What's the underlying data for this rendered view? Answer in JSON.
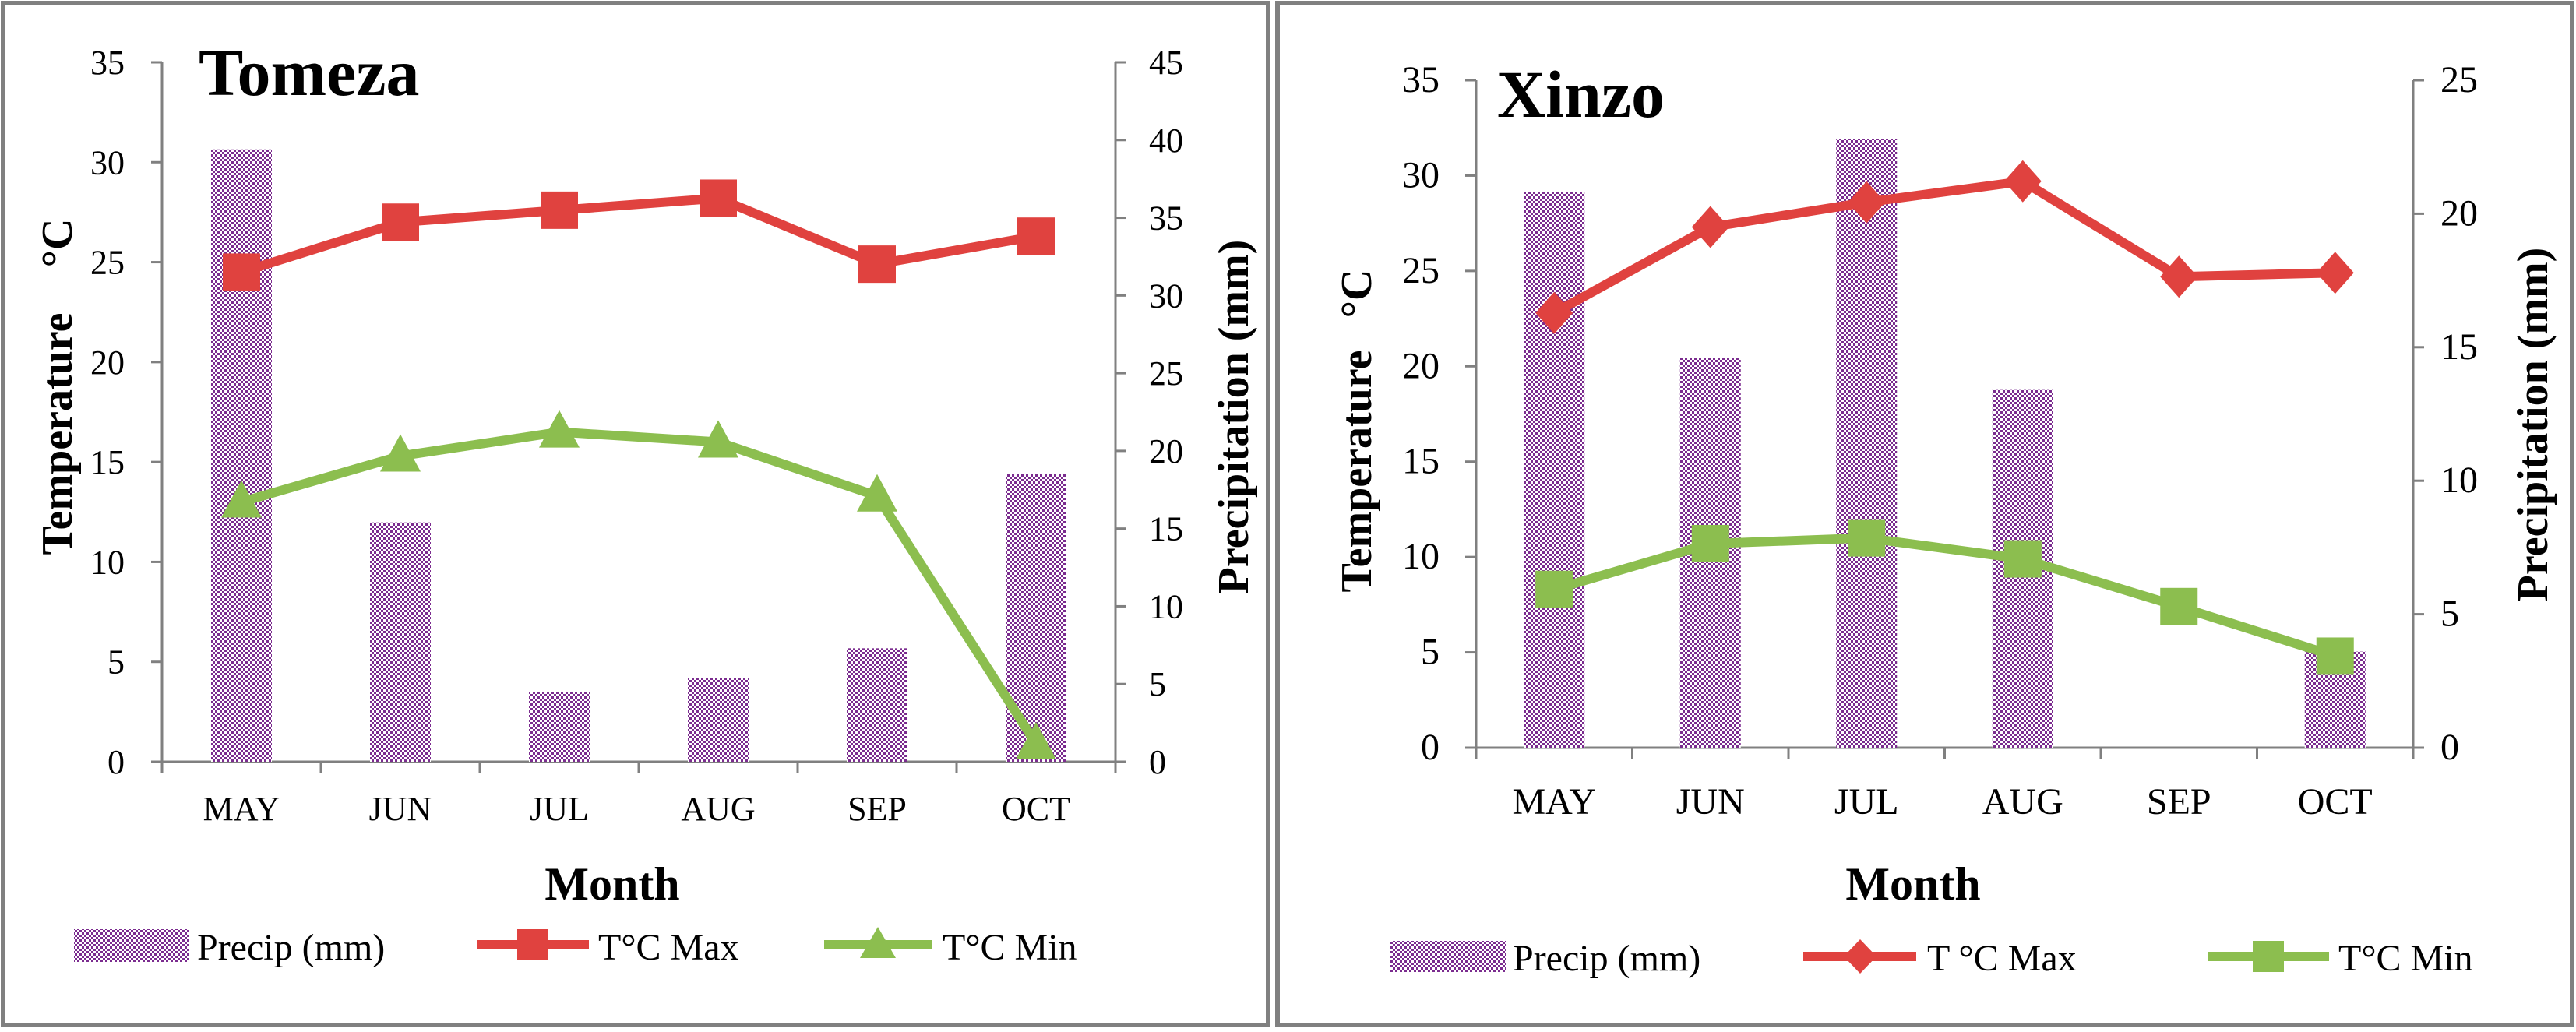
{
  "colors": {
    "precip": "#7B2C8F",
    "tmax": "#E0423F",
    "tmin": "#8CBE4F",
    "axis": "#808080",
    "border": "#808080"
  },
  "chart_data": [
    {
      "type": "bar",
      "title": "Tomeza",
      "categories": [
        "MAY",
        "JUN",
        "JUL",
        "AUG",
        "SEP",
        "OCT"
      ],
      "xlabel": "Month",
      "ylabel": "Temperature",
      "ylabel_unit": "°C",
      "y2label": "Precipitation (mm)",
      "ylim": [
        0,
        35
      ],
      "y2lim": [
        0,
        45
      ],
      "yticks": [
        "0",
        "5",
        "10",
        "15",
        "20",
        "25",
        "30",
        "35"
      ],
      "y2ticks": [
        "0",
        "5",
        "10",
        "15",
        "20",
        "25",
        "30",
        "35",
        "40",
        "45"
      ],
      "series": [
        {
          "name": "Precip (mm)",
          "kind": "bar",
          "axis": "right",
          "values": [
            39.4,
            15.4,
            4.5,
            5.4,
            7.3,
            18.5
          ]
        },
        {
          "name": "T°C Max",
          "kind": "line",
          "axis": "left",
          "marker": "square",
          "values": [
            24.5,
            27.0,
            27.6,
            28.2,
            24.9,
            26.3
          ]
        },
        {
          "name": "T°C Min",
          "kind": "line",
          "axis": "left",
          "marker": "triangle",
          "values": [
            13.0,
            15.3,
            16.5,
            16.0,
            13.3,
            0.9
          ]
        }
      ],
      "legend": [
        "Precip (mm)",
        "T°C Max",
        "T°C Min"
      ]
    },
    {
      "type": "bar",
      "title": "Xinzo",
      "categories": [
        "MAY",
        "JUN",
        "JUL",
        "AUG",
        "SEP",
        "OCT"
      ],
      "xlabel": "Month",
      "ylabel": "Temperature",
      "ylabel_unit": "°C",
      "y2label": "Precipitation (mm)",
      "ylim": [
        0,
        35
      ],
      "y2lim": [
        0,
        25
      ],
      "yticks": [
        "0",
        "5",
        "10",
        "15",
        "20",
        "25",
        "30",
        "35"
      ],
      "y2ticks": [
        "0",
        "5",
        "10",
        "15",
        "20",
        "25"
      ],
      "series": [
        {
          "name": "Precip (mm)",
          "kind": "bar",
          "axis": "right",
          "values": [
            20.8,
            14.6,
            22.8,
            13.4,
            0,
            3.6
          ]
        },
        {
          "name": "T °C Max",
          "kind": "line",
          "axis": "left",
          "marker": "diamond",
          "values": [
            22.8,
            27.3,
            28.6,
            29.7,
            24.7,
            24.9
          ]
        },
        {
          "name": "T°C Min",
          "kind": "line",
          "axis": "left",
          "marker": "square",
          "values": [
            8.3,
            10.7,
            11.0,
            9.9,
            7.4,
            4.8
          ]
        }
      ],
      "legend": [
        "Precip (mm)",
        "T °C Max",
        "T°C Min"
      ]
    }
  ]
}
